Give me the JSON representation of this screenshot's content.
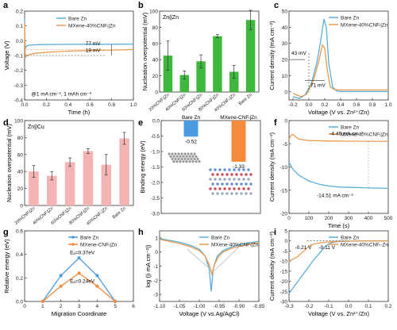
{
  "chart_data": [
    {
      "panel": "a",
      "type": "line",
      "xlabel": "Time (h)",
      "ylabel": "Voltage (V)",
      "xlim": [
        0,
        1.0
      ],
      "ylim": [
        -0.4,
        0.2
      ],
      "xticks": [
        "0.0",
        "0.2",
        "0.4",
        "0.6",
        "0.8",
        "1.0"
      ],
      "yticks": [
        "-0.4",
        "-0.3",
        "-0.2",
        "-0.1",
        "0.0",
        "0.1",
        "0.2"
      ],
      "legend": "top-right",
      "annotations": [
        "77 mV",
        "19 mV",
        "@1 mA cm⁻², 1 mAh cm⁻²"
      ],
      "series": [
        {
          "name": "Bare Zn",
          "color": "#5aaed8",
          "x": [
            0,
            0.005,
            0.01,
            0.02,
            0.04,
            0.08,
            0.15,
            0.3,
            0.5,
            0.7,
            1.0
          ],
          "y": [
            0.15,
            -0.06,
            -0.045,
            -0.035,
            -0.03,
            -0.028,
            -0.026,
            -0.025,
            -0.024,
            -0.024,
            -0.023
          ]
        },
        {
          "name": "MXene-40%CNFₗ|Zn",
          "color": "#e89a50",
          "x": [
            0,
            0.005,
            0.01,
            0.02,
            0.05,
            0.1,
            0.2,
            0.4,
            0.6,
            0.8,
            1.0
          ],
          "y": [
            0.12,
            -0.085,
            -0.11,
            -0.1,
            -0.092,
            -0.085,
            -0.078,
            -0.07,
            -0.066,
            -0.063,
            -0.06
          ]
        }
      ]
    },
    {
      "panel": "b",
      "type": "bar",
      "title": "Zn||Zn",
      "ylabel": "Nucleation overpotential (mV)",
      "ylim": [
        0,
        100
      ],
      "yticks": [
        "0",
        "20",
        "40",
        "60",
        "80",
        "100"
      ],
      "categories": [
        "20%CNFₗ|Zn",
        "40%CNFₗ|Zn",
        "60%CNFₗ|Zn",
        "80%CNFₗ|Zn",
        "40%CNFₛ|Zn",
        "Bare Zn"
      ],
      "values": [
        45,
        21,
        38,
        69,
        25,
        89
      ],
      "errors": [
        18,
        5,
        8,
        2,
        8,
        12
      ],
      "color": "#3db83d"
    },
    {
      "panel": "c",
      "type": "line",
      "xlabel": "Voltage (V vs. Zn²⁺/Zn)",
      "ylabel": "Current density (mA cm⁻²)",
      "xlim": [
        -0.25,
        1.0
      ],
      "ylim": [
        -5,
        50
      ],
      "xticks": [
        "-0.2",
        "0.0",
        "0.2",
        "0.4",
        "0.6",
        "0.8",
        "1.0"
      ],
      "yticks": [
        "0",
        "10",
        "20",
        "30",
        "40",
        "50"
      ],
      "legend": "top-right",
      "annotations": [
        "43 mV",
        "71 mV"
      ],
      "series": [
        {
          "name": "Bare Zn",
          "color": "#5aaed8",
          "x": [
            -0.2,
            -0.12,
            -0.05,
            0.03,
            0.1,
            0.15,
            0.19,
            0.22,
            0.25,
            0.3,
            0.35,
            0.4,
            1.0
          ],
          "y": [
            -3,
            -4,
            -2,
            5,
            18,
            32,
            45,
            40,
            18,
            3,
            0.5,
            0.2,
            0.2
          ]
        },
        {
          "name": "MXene-40%CNFₗ|Zn",
          "color": "#e89a50",
          "x": [
            -0.2,
            -0.1,
            -0.03,
            0.05,
            0.12,
            0.17,
            0.2,
            0.23,
            0.27,
            0.32,
            0.4,
            1.0
          ],
          "y": [
            -1,
            -3,
            -1.5,
            6,
            18,
            29,
            27,
            14,
            3,
            1.5,
            1.2,
            1.2
          ]
        }
      ]
    },
    {
      "panel": "d",
      "type": "bar",
      "title": "Zn||Cu",
      "ylabel": "Nucleation overpotential (mV)",
      "ylim": [
        0,
        100
      ],
      "yticks": [
        "0",
        "20",
        "40",
        "60",
        "80",
        "100"
      ],
      "categories": [
        "20%CNFₗ|Zn",
        "40%CNFₗ|Zn",
        "60%CNFₗ|Zn",
        "80%CNFₗ|Zn",
        "40%CNFₛ|Zn",
        "Bare Zn"
      ],
      "values": [
        40,
        35,
        51,
        64,
        48,
        79
      ],
      "errors": [
        7,
        5,
        5,
        3,
        12,
        7
      ],
      "color": "#f4b4b4"
    },
    {
      "panel": "e",
      "type": "bar",
      "ylabel": "Binding energy (eV)",
      "ylim": [
        -3.0,
        0
      ],
      "yticks": [
        "-3.0",
        "-2.5",
        "-2.0",
        "-1.5",
        "-1.0",
        "-0.5",
        "0.0"
      ],
      "categories": [
        "Bare Zn",
        "MXene-CNFₗ|Zn"
      ],
      "values": [
        -0.52,
        -1.33
      ],
      "value_labels": [
        "-0.52",
        "-1.33"
      ],
      "colors": [
        "#4b9be0",
        "#f58a3a"
      ]
    },
    {
      "panel": "f",
      "type": "line",
      "xlabel": "Time (s)",
      "ylabel": "Current density (mA cm⁻²)",
      "xlim": [
        0,
        500
      ],
      "ylim": [
        -20,
        0
      ],
      "xticks": [
        "0",
        "100",
        "200",
        "300",
        "400",
        "500"
      ],
      "yticks": [
        "-20",
        "-15",
        "-10",
        "-5",
        "0"
      ],
      "legend": "top-right",
      "annotations": [
        "-4.46 mA cm⁻²",
        "-14.51 mA cm⁻²"
      ],
      "series": [
        {
          "name": "Bare Zn",
          "color": "#5aaed8",
          "x": [
            0,
            20,
            50,
            100,
            150,
            200,
            250,
            300,
            350,
            400,
            450,
            500
          ],
          "y": [
            -9,
            -10.5,
            -11.8,
            -13,
            -13.7,
            -14.1,
            -14.3,
            -14.4,
            -14.45,
            -14.51,
            -14.55,
            -14.6
          ]
        },
        {
          "name": "MXene-40%CNFₗ|Zn",
          "color": "#e89a50",
          "x": [
            0,
            10,
            20,
            30,
            50,
            100,
            200,
            300,
            400,
            500
          ],
          "y": [
            -4.0,
            -3.2,
            -3.0,
            -3.4,
            -4.0,
            -4.3,
            -4.4,
            -4.45,
            -4.46,
            -4.47
          ]
        }
      ]
    },
    {
      "panel": "g",
      "type": "line",
      "xlabel": "Migration Coordinate",
      "ylabel": "Relative energy (eV)",
      "xlim": [
        0,
        6
      ],
      "ylim": [
        0,
        0.6
      ],
      "xticks": [
        "0",
        "1",
        "2",
        "3",
        "4",
        "5",
        "6"
      ],
      "yticks": [
        "0.0",
        "0.2",
        "0.4",
        "0.6"
      ],
      "legend": "top-right",
      "annotations": [
        "Eₐ=0.37eV",
        "Eₐ=0.24eV"
      ],
      "series": [
        {
          "name": "Bare Zn",
          "color": "#4b9be0",
          "x": [
            1,
            2,
            3,
            4,
            5
          ],
          "y": [
            0.0,
            0.22,
            0.37,
            0.22,
            0.0
          ]
        },
        {
          "name": "MXene-CNFₗ|Zn",
          "color": "#f58a3a",
          "x": [
            1,
            2,
            3,
            4,
            5
          ],
          "y": [
            0.0,
            0.13,
            0.24,
            0.13,
            0.0
          ]
        }
      ]
    },
    {
      "panel": "h",
      "type": "line",
      "xlabel": "Voltage (V vs.Ag/AgCl)",
      "ylabel": "log (|i mA cm⁻²|)",
      "xlim": [
        -1.1,
        -0.85
      ],
      "ylim": [
        -3.5,
        1.5
      ],
      "xticks": [
        "-1.10",
        "-1.05",
        "-1.00",
        "-0.95",
        "-0.90",
        "-0.85"
      ],
      "yticks": [
        "-3",
        "-2",
        "-1",
        "0",
        "1"
      ],
      "legend": "top-right",
      "series": [
        {
          "name": "Bare Zn",
          "color": "#5aaed8",
          "x": [
            -1.1,
            -1.08,
            -1.05,
            -1.02,
            -1.0,
            -0.985,
            -0.975,
            -0.97,
            -0.965,
            -0.955,
            -0.94,
            -0.92,
            -0.9,
            -0.88,
            -0.86,
            -0.85
          ],
          "y": [
            0.95,
            0.85,
            0.7,
            0.45,
            0.2,
            -0.3,
            -1.2,
            -2.8,
            -1.2,
            -0.3,
            0.1,
            0.35,
            0.5,
            0.62,
            0.72,
            0.76
          ]
        },
        {
          "name": "MXene-40%CNFₗ|Zn",
          "color": "#e89a50",
          "x": [
            -1.1,
            -1.08,
            -1.05,
            -1.02,
            -1.0,
            -0.985,
            -0.975,
            -0.968,
            -0.962,
            -0.952,
            -0.94,
            -0.92,
            -0.9,
            -0.88,
            -0.86,
            -0.85
          ],
          "y": [
            0.9,
            0.78,
            0.6,
            0.35,
            0.1,
            -0.3,
            -0.9,
            -1.6,
            -0.9,
            -0.35,
            0.0,
            0.25,
            0.4,
            0.52,
            0.62,
            0.66
          ]
        }
      ]
    },
    {
      "panel": "i",
      "type": "line",
      "xlabel": "Voltage (V vs. Zn²⁺/Zn)",
      "ylabel": "Current density (mA cm⁻²)",
      "xlim": [
        -0.3,
        0.2
      ],
      "ylim": [
        -30,
        5
      ],
      "xticks": [
        "-0.3",
        "-0.2",
        "-0.1",
        "0.0",
        "0.1",
        "0.2"
      ],
      "yticks": [
        "-30",
        "-25",
        "-20",
        "-15",
        "-10",
        "-5",
        "0",
        "5"
      ],
      "legend": "top-right",
      "annotations": [
        "-0.21 V",
        "-0.11 V"
      ],
      "series": [
        {
          "name": "Bare Zn",
          "color": "#5aaed8",
          "x": [
            -0.3,
            -0.27,
            -0.24,
            -0.21,
            -0.18,
            -0.15,
            -0.12,
            -0.1,
            -0.08,
            -0.05,
            0.0,
            0.1,
            0.2
          ],
          "y": [
            -26,
            -22,
            -18,
            -14,
            -10,
            -6.5,
            -3,
            -1.5,
            -0.7,
            -0.3,
            -0.1,
            0,
            0
          ]
        },
        {
          "name": "MXene-40%CNFₗ-Zn",
          "color": "#e89a50",
          "x": [
            -0.3,
            -0.26,
            -0.23,
            -0.21,
            -0.19,
            -0.16,
            -0.12,
            -0.08,
            -0.04,
            0.0,
            0.1,
            0.2
          ],
          "y": [
            -10,
            -8,
            -5.5,
            -3.5,
            -2,
            -1.2,
            -0.7,
            -0.4,
            -0.2,
            -0.1,
            0,
            0
          ]
        }
      ]
    }
  ]
}
